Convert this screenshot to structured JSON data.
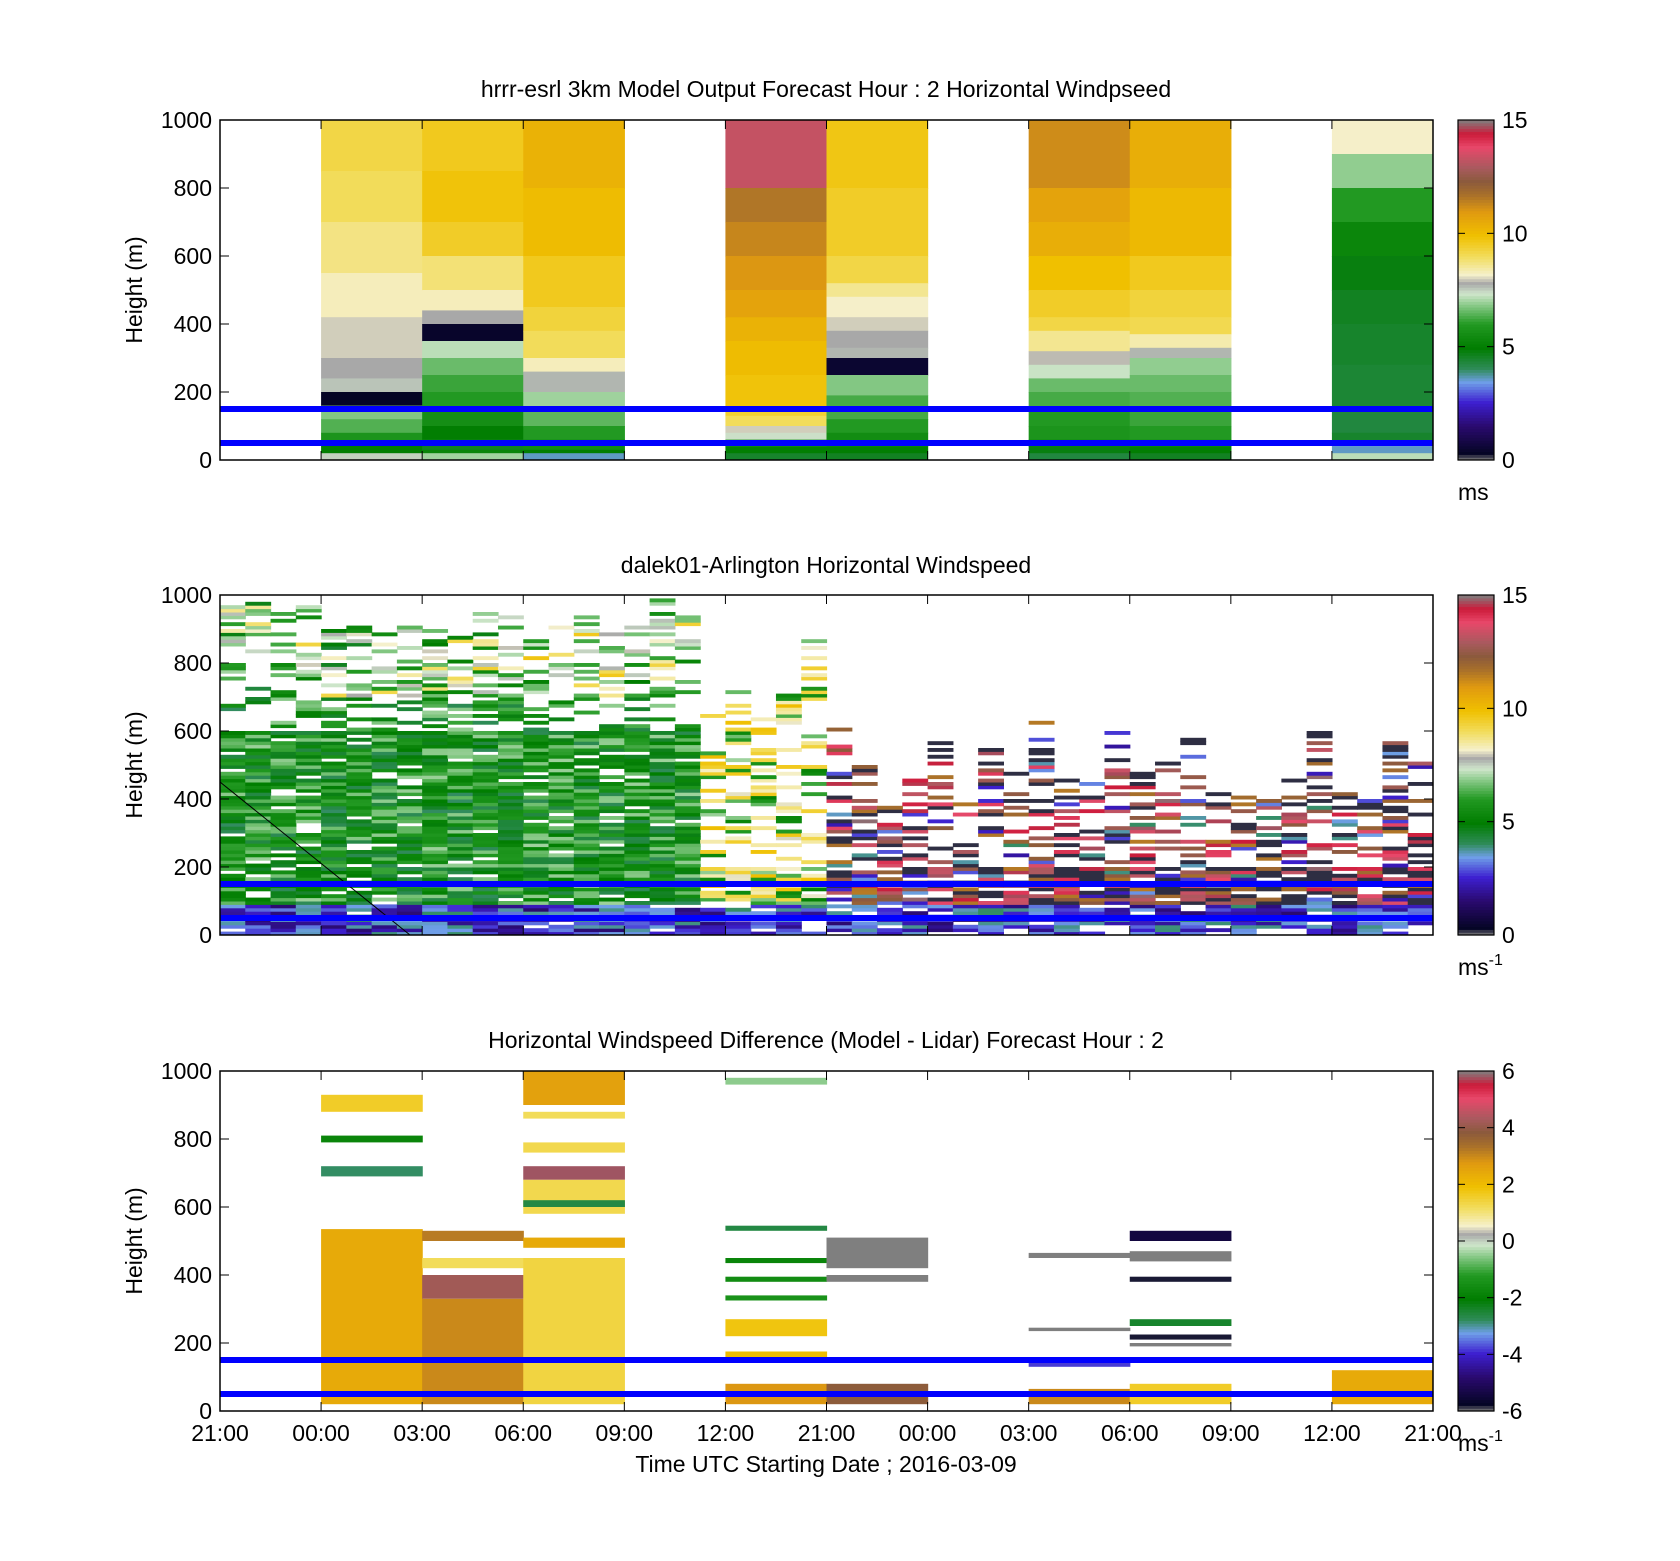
{
  "figure": {
    "xlabel": "Time UTC  Starting Date ; 2016-03-09",
    "x_ticks": [
      "21:00",
      "00:00",
      "03:00",
      "06:00",
      "09:00",
      "12:00",
      "21:00",
      "00:00",
      "03:00",
      "06:00",
      "09:00",
      "12:00",
      "21:00"
    ],
    "ylabel": "Height (m)",
    "y_ticks": [
      "0",
      "200",
      "400",
      "600",
      "800",
      "1000"
    ],
    "reference_lines_m": [
      50,
      150
    ],
    "reference_line_color": "#0000ff"
  },
  "chart_data": [
    {
      "type": "heatmap",
      "title": "hrrr-esrl 3km Model Output   Forecast Hour : 2 Horizontal Windpseed",
      "ylim": [
        0,
        1000
      ],
      "colorbar": {
        "ticks": [
          "0",
          "5",
          "10",
          "15"
        ],
        "range": [
          0,
          15
        ],
        "unit": "ms",
        "unit_sup": ""
      },
      "columns": [
        {
          "slot": 1,
          "layers": [
            [
              1000,
              9.2
            ],
            [
              850,
              9.0
            ],
            [
              700,
              8.7
            ],
            [
              550,
              8.3
            ],
            [
              420,
              8.0
            ],
            [
              300,
              7.8
            ],
            [
              240,
              7.6
            ],
            [
              200,
              0.3
            ],
            [
              160,
              6.8
            ],
            [
              120,
              6.4
            ],
            [
              80,
              5.8
            ],
            [
              45,
              5.0
            ],
            [
              20,
              7.5
            ]
          ]
        },
        {
          "slot": 2,
          "layers": [
            [
              1000,
              9.6
            ],
            [
              850,
              9.8
            ],
            [
              700,
              9.5
            ],
            [
              600,
              8.8
            ],
            [
              500,
              8.3
            ],
            [
              440,
              7.8
            ],
            [
              400,
              0.4
            ],
            [
              350,
              7.2
            ],
            [
              300,
              6.6
            ],
            [
              250,
              6.2
            ],
            [
              200,
              6.0
            ],
            [
              150,
              5.6
            ],
            [
              100,
              5.0
            ],
            [
              60,
              4.6
            ],
            [
              30,
              5.2
            ],
            [
              20,
              7.0
            ]
          ]
        },
        {
          "slot": 3,
          "layers": [
            [
              1000,
              10.3
            ],
            [
              800,
              10.0
            ],
            [
              600,
              9.6
            ],
            [
              450,
              9.3
            ],
            [
              380,
              9.0
            ],
            [
              300,
              8.3
            ],
            [
              260,
              7.7
            ],
            [
              200,
              7.0
            ],
            [
              150,
              6.5
            ],
            [
              100,
              6.0
            ],
            [
              60,
              5.5
            ],
            [
              30,
              5.0
            ],
            [
              20,
              3.6
            ]
          ]
        },
        {
          "slot": 5,
          "layers": [
            [
              1000,
              13.3
            ],
            [
              800,
              11.6
            ],
            [
              700,
              11.3
            ],
            [
              600,
              11.0
            ],
            [
              500,
              10.7
            ],
            [
              420,
              10.3
            ],
            [
              350,
              10.0
            ],
            [
              250,
              9.8
            ],
            [
              150,
              9.4
            ],
            [
              130,
              9.0
            ],
            [
              100,
              8.0
            ],
            [
              80,
              7.4
            ],
            [
              60,
              6.0
            ],
            [
              40,
              5.0
            ],
            [
              20,
              4.5
            ]
          ]
        },
        {
          "slot": 6,
          "layers": [
            [
              1000,
              9.7
            ],
            [
              800,
              9.5
            ],
            [
              600,
              9.2
            ],
            [
              520,
              8.6
            ],
            [
              480,
              8.2
            ],
            [
              420,
              8.0
            ],
            [
              380,
              7.8
            ],
            [
              330,
              7.7
            ],
            [
              300,
              0.5
            ],
            [
              250,
              6.8
            ],
            [
              190,
              6.3
            ],
            [
              120,
              6.0
            ],
            [
              80,
              5.5
            ],
            [
              40,
              5.0
            ],
            [
              20,
              4.6
            ]
          ]
        },
        {
          "slot": 8,
          "layers": [
            [
              1000,
              11.2
            ],
            [
              800,
              10.7
            ],
            [
              700,
              10.4
            ],
            [
              600,
              9.9
            ],
            [
              500,
              9.5
            ],
            [
              420,
              9.2
            ],
            [
              380,
              8.6
            ],
            [
              320,
              7.9
            ],
            [
              280,
              7.3
            ],
            [
              240,
              6.6
            ],
            [
              200,
              6.3
            ],
            [
              150,
              6.0
            ],
            [
              100,
              5.8
            ],
            [
              60,
              5.4
            ],
            [
              40,
              4.8
            ],
            [
              20,
              4.3
            ]
          ]
        },
        {
          "slot": 9,
          "layers": [
            [
              1000,
              10.4
            ],
            [
              800,
              10.1
            ],
            [
              600,
              9.6
            ],
            [
              500,
              9.3
            ],
            [
              420,
              9.1
            ],
            [
              370,
              8.4
            ],
            [
              330,
              7.7
            ],
            [
              300,
              6.9
            ],
            [
              250,
              6.6
            ],
            [
              200,
              6.4
            ],
            [
              150,
              6.2
            ],
            [
              100,
              6.0
            ],
            [
              60,
              5.6
            ],
            [
              40,
              5.0
            ],
            [
              20,
              4.6
            ]
          ]
        },
        {
          "slot": 11,
          "layers": [
            [
              1000,
              8.2
            ],
            [
              900,
              6.9
            ],
            [
              800,
              6.0
            ],
            [
              700,
              5.3
            ],
            [
              600,
              4.8
            ],
            [
              500,
              4.6
            ],
            [
              400,
              4.5
            ],
            [
              280,
              4.4
            ],
            [
              150,
              4.3
            ],
            [
              80,
              4.5
            ],
            [
              55,
              3.4
            ],
            [
              40,
              3.6
            ],
            [
              20,
              7.2
            ]
          ]
        }
      ]
    },
    {
      "type": "heatmap",
      "title": "dalek01-Arlington  Horizontal Windspeed",
      "ylim": [
        0,
        1000
      ],
      "colorbar": {
        "ticks": [
          "0",
          "5",
          "10",
          "15"
        ],
        "range": [
          0,
          15
        ],
        "unit": "ms",
        "unit_sup": "-1"
      },
      "description": "dense lidar time-height scatter: green/blue early, yellow mid, red/gray/purple later"
    },
    {
      "type": "heatmap",
      "title": "Horizontal Windspeed Difference (Model - Lidar) Forecast Hour : 2",
      "ylim": [
        0,
        1000
      ],
      "colorbar": {
        "ticks": [
          "-6",
          "-4",
          "-2",
          "0",
          "2",
          "4",
          "6"
        ],
        "range": [
          -6,
          6
        ],
        "unit": "ms",
        "unit_sup": "-1"
      },
      "blocks": [
        {
          "slot": 1,
          "y0": 880,
          "y1": 930,
          "v": 1.6
        },
        {
          "slot": 1,
          "y0": 790,
          "y1": 810,
          "v": -1.8
        },
        {
          "slot": 1,
          "y0": 690,
          "y1": 720,
          "v": -2.8
        },
        {
          "slot": 1,
          "y0": 20,
          "y1": 535,
          "v": 2.4
        },
        {
          "slot": 2,
          "y0": 500,
          "y1": 530,
          "v": 3.2
        },
        {
          "slot": 2,
          "y0": 420,
          "y1": 450,
          "v": 1.2
        },
        {
          "slot": 2,
          "y0": 330,
          "y1": 400,
          "v": 4.2
        },
        {
          "slot": 2,
          "y0": 20,
          "y1": 330,
          "v": 3.0
        },
        {
          "slot": 3,
          "y0": 900,
          "y1": 1000,
          "v": 2.6
        },
        {
          "slot": 3,
          "y0": 860,
          "y1": 880,
          "v": 1.2
        },
        {
          "slot": 3,
          "y0": 760,
          "y1": 790,
          "v": 1.3
        },
        {
          "slot": 3,
          "y0": 680,
          "y1": 720,
          "v": 5.8
        },
        {
          "slot": 3,
          "y0": 580,
          "y1": 680,
          "v": 1.3
        },
        {
          "slot": 3,
          "y0": 600,
          "y1": 620,
          "v": -2.6
        },
        {
          "slot": 3,
          "y0": 480,
          "y1": 510,
          "v": 2.4
        },
        {
          "slot": 3,
          "y0": 20,
          "y1": 450,
          "v": 1.4
        },
        {
          "slot": 5,
          "y0": 960,
          "y1": 980,
          "v": -0.5
        },
        {
          "slot": 5,
          "y0": 530,
          "y1": 545,
          "v": -2.6
        },
        {
          "slot": 5,
          "y0": 435,
          "y1": 450,
          "v": -1.8
        },
        {
          "slot": 5,
          "y0": 380,
          "y1": 395,
          "v": -1.6
        },
        {
          "slot": 5,
          "y0": 325,
          "y1": 340,
          "v": -1.4
        },
        {
          "slot": 5,
          "y0": 220,
          "y1": 270,
          "v": 1.8
        },
        {
          "slot": 5,
          "y0": 150,
          "y1": 175,
          "v": 2.0
        },
        {
          "slot": 5,
          "y0": 20,
          "y1": 80,
          "v": 2.8
        },
        {
          "slot": 6,
          "y0": 420,
          "y1": 510,
          "v": 6.0
        },
        {
          "slot": 6,
          "y0": 380,
          "y1": 400,
          "v": 6.0
        },
        {
          "slot": 6,
          "y0": 20,
          "y1": 80,
          "v": 3.8
        },
        {
          "slot": 8,
          "y0": 450,
          "y1": 465,
          "v": 6.0
        },
        {
          "slot": 8,
          "y0": 235,
          "y1": 245,
          "v": 6.0
        },
        {
          "slot": 8,
          "y0": 130,
          "y1": 150,
          "v": -3.8
        },
        {
          "slot": 8,
          "y0": 20,
          "y1": 65,
          "v": 3.0
        },
        {
          "slot": 9,
          "y0": 500,
          "y1": 530,
          "v": -5.4
        },
        {
          "slot": 9,
          "y0": 440,
          "y1": 470,
          "v": 6.0
        },
        {
          "slot": 9,
          "y0": 380,
          "y1": 395,
          "v": -5.8
        },
        {
          "slot": 9,
          "y0": 250,
          "y1": 270,
          "v": -2.4
        },
        {
          "slot": 9,
          "y0": 210,
          "y1": 225,
          "v": -5.8
        },
        {
          "slot": 9,
          "y0": 190,
          "y1": 200,
          "v": 6.0
        },
        {
          "slot": 9,
          "y0": 20,
          "y1": 80,
          "v": 1.6
        },
        {
          "slot": 11,
          "y0": 20,
          "y1": 120,
          "v": 2.4
        }
      ]
    }
  ]
}
